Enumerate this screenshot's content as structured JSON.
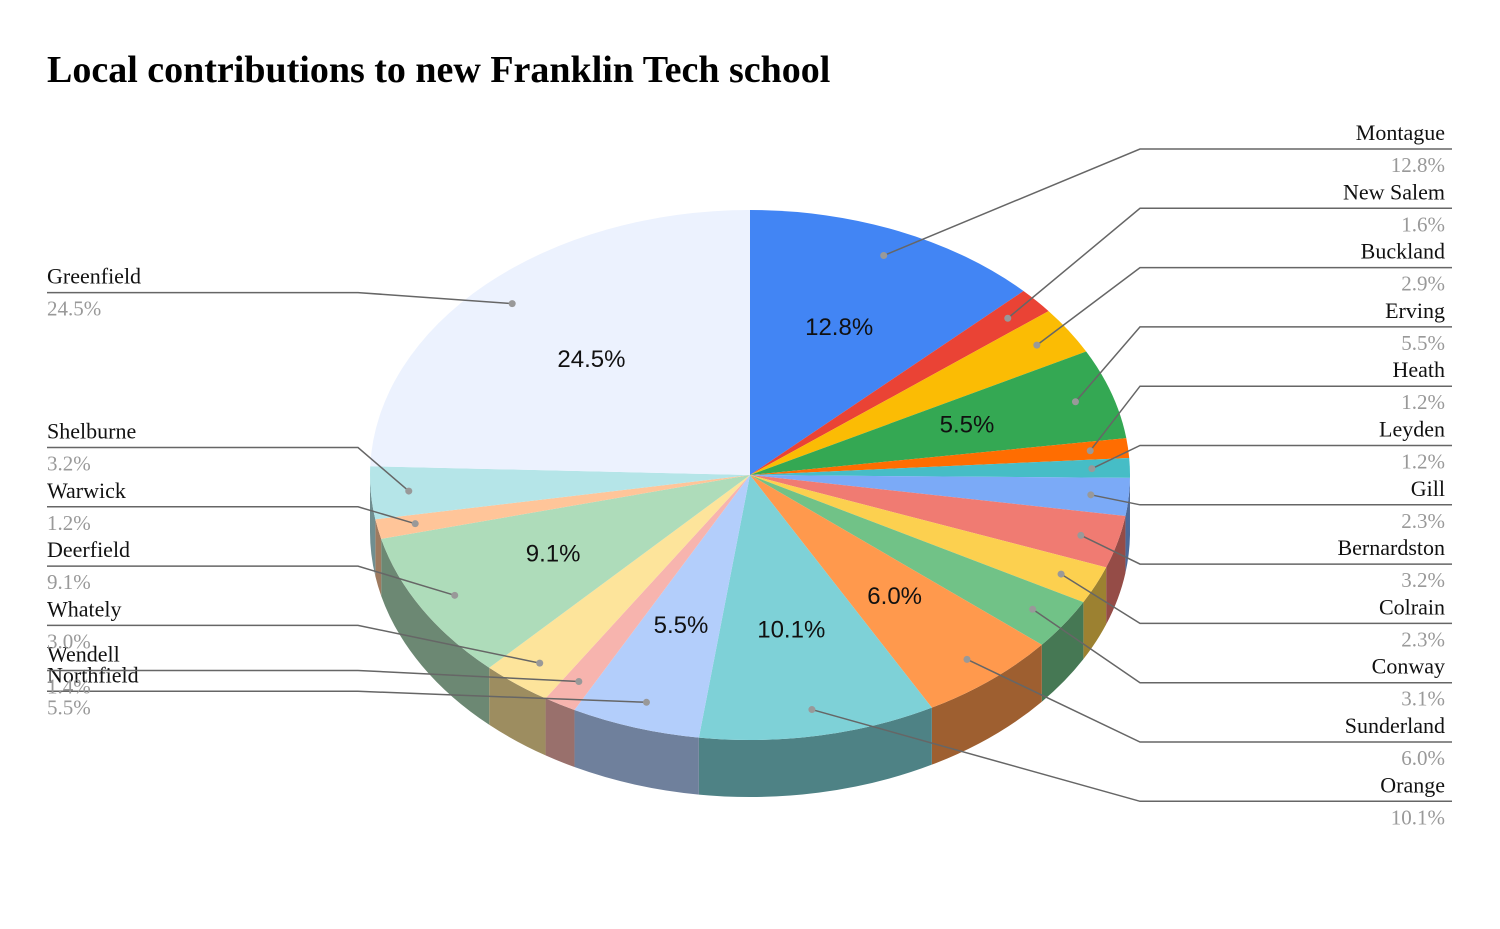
{
  "chart_data": {
    "type": "pie",
    "title": "Local contributions to new Franklin Tech school",
    "categories": [
      "Montague",
      "New Salem",
      "Buckland",
      "Erving",
      "Heath",
      "Leyden",
      "Gill",
      "Bernardston",
      "Colrain",
      "Conway",
      "Sunderland",
      "Orange",
      "Northfield",
      "Wendell",
      "Whately",
      "Deerfield",
      "Warwick",
      "Shelburne",
      "Greenfield"
    ],
    "values": [
      12.8,
      1.6,
      2.9,
      5.5,
      1.2,
      1.2,
      2.3,
      3.2,
      2.3,
      3.1,
      6.0,
      10.1,
      5.5,
      1.4,
      3.0,
      9.1,
      1.2,
      3.2,
      24.5
    ],
    "value_labels": [
      "12.8%",
      "1.6%",
      "2.9%",
      "5.5%",
      "1.2%",
      "1.2%",
      "2.3%",
      "3.2%",
      "2.3%",
      "3.1%",
      "6.0%",
      "10.1%",
      "5.5%",
      "1.4%",
      "3.0%",
      "9.1%",
      "1.2%",
      "3.2%",
      "24.5%"
    ],
    "colors": [
      "#4285f4",
      "#ea4335",
      "#fbbc04",
      "#34a853",
      "#ff6d01",
      "#46bdc6",
      "#7baaf7",
      "#f07b72",
      "#fcd04f",
      "#71c287",
      "#ff994d",
      "#7ed1d7",
      "#b3cefb",
      "#f7b4ae",
      "#fde49b",
      "#aedcba",
      "#ffc599",
      "#b5e5e8",
      "#ecf2fe"
    ]
  }
}
